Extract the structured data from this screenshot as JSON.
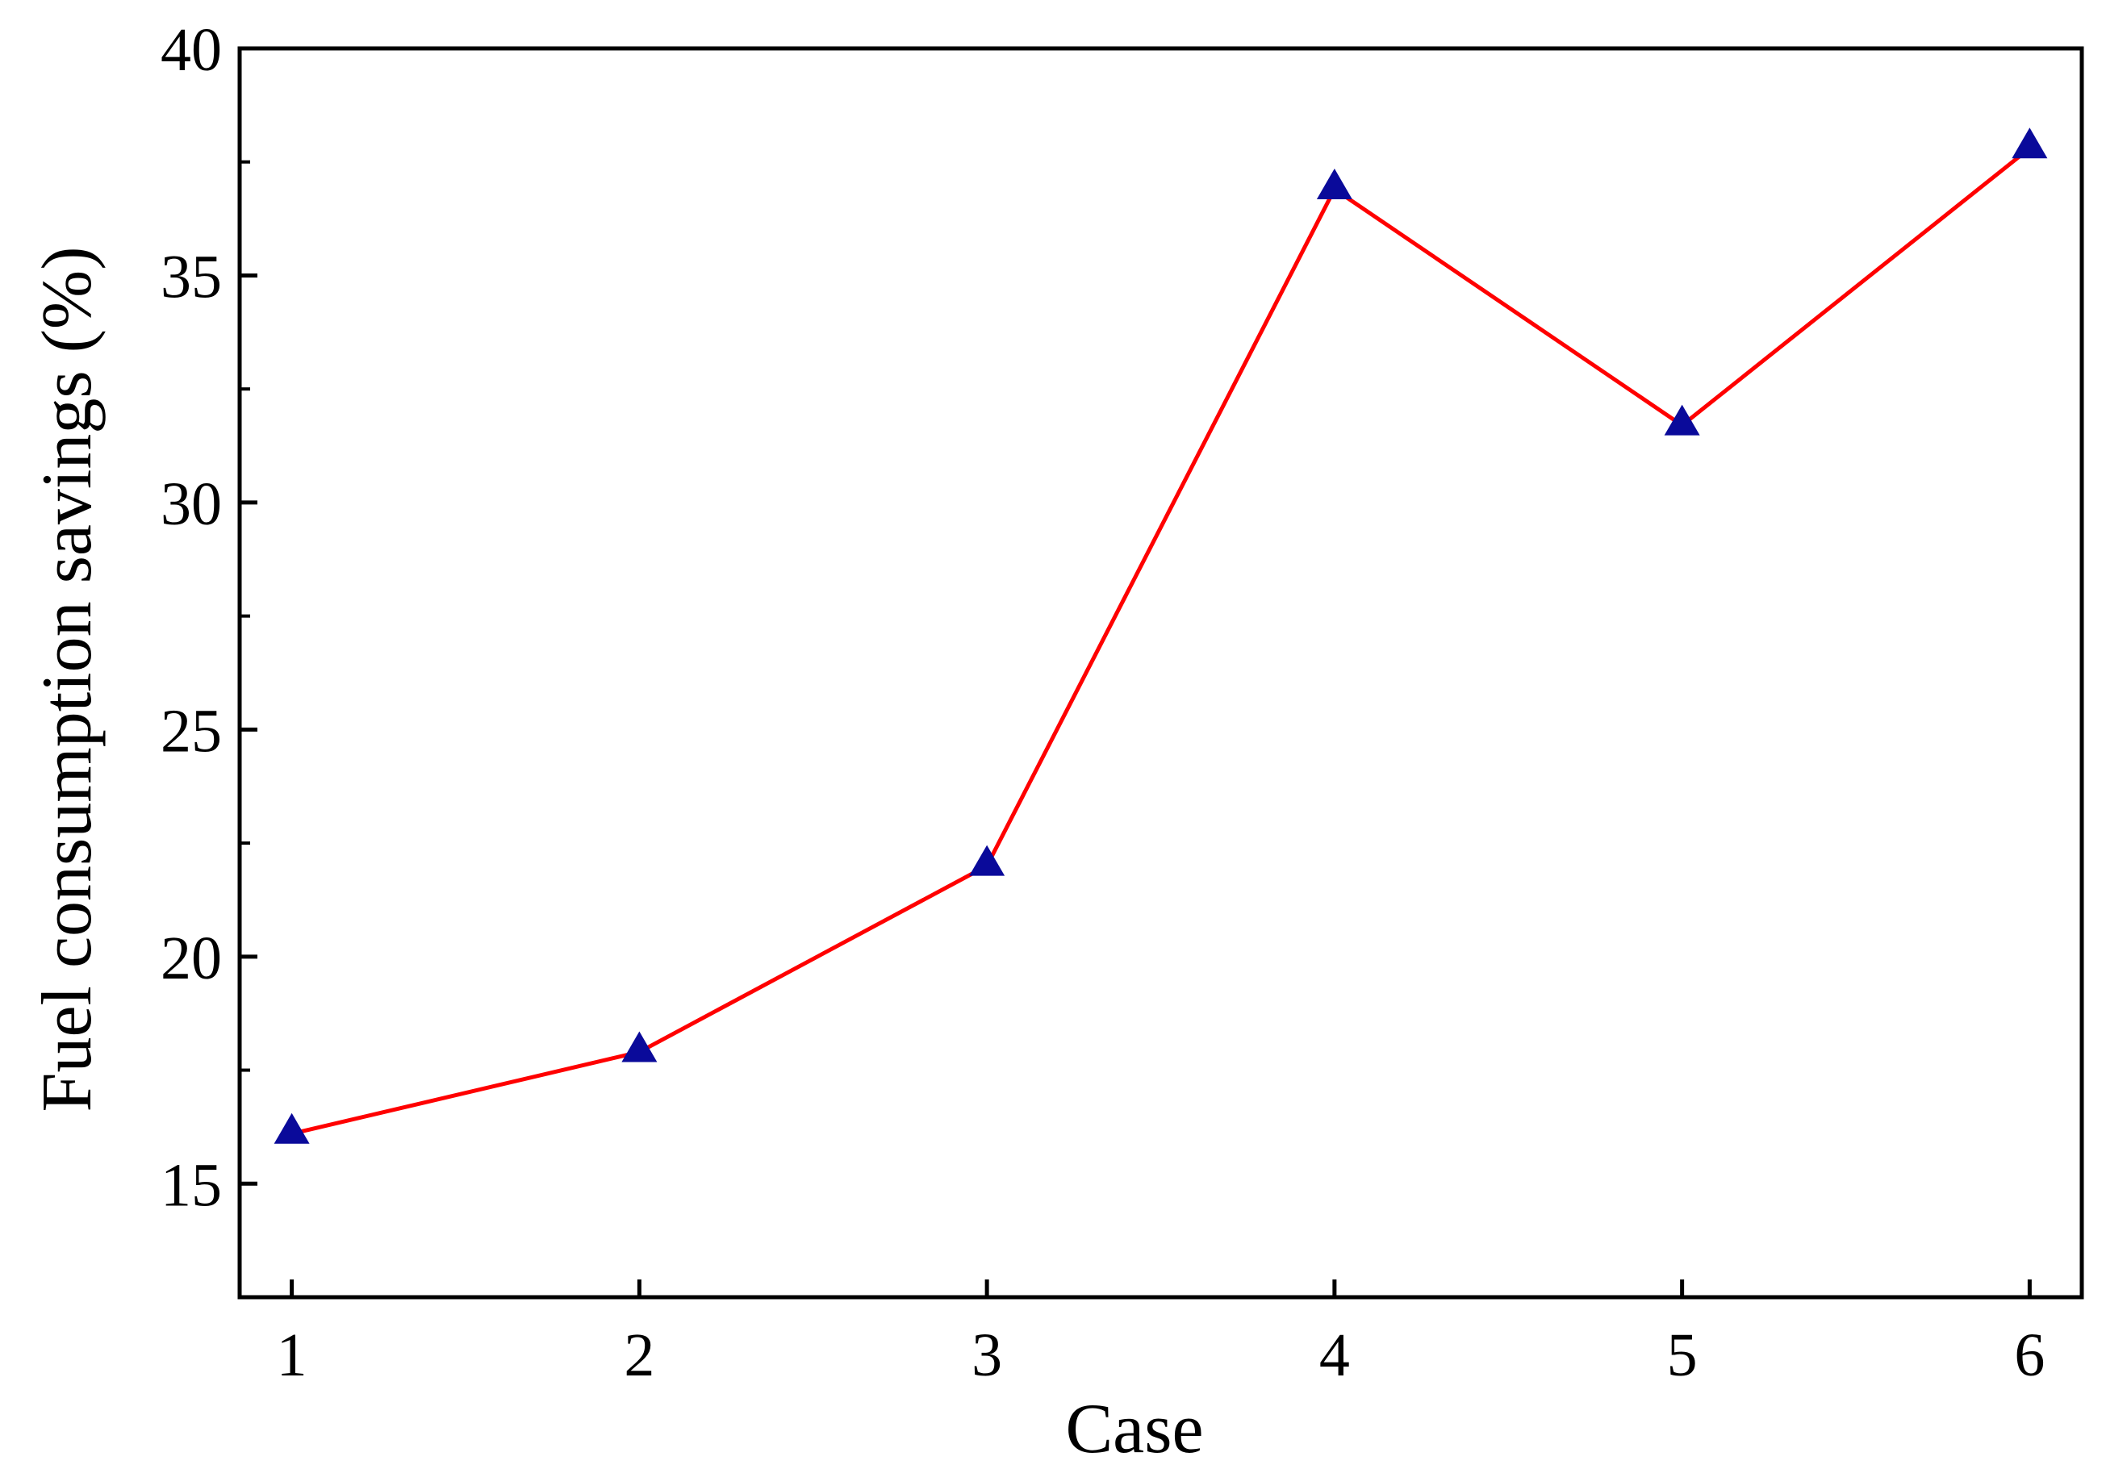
{
  "chart_data": {
    "type": "line",
    "title": "",
    "xlabel": "Case",
    "ylabel": "Fuel consumption savings (%)",
    "x": [
      1,
      2,
      3,
      4,
      5,
      6
    ],
    "x_ticks": [
      "1",
      "2",
      "3",
      "4",
      "5",
      "6"
    ],
    "y_ticks": [
      "15",
      "20",
      "25",
      "30",
      "35",
      "40"
    ],
    "xlim": [
      0.85,
      6.15
    ],
    "ylim": [
      12.5,
      40
    ],
    "grid": false,
    "legend": "none",
    "series": [
      {
        "values": [
          16.1,
          17.9,
          22.0,
          36.9,
          31.7,
          37.8
        ],
        "line_color": "#ff0000",
        "marker": "triangle",
        "marker_color": "#0a0a9a"
      }
    ]
  }
}
